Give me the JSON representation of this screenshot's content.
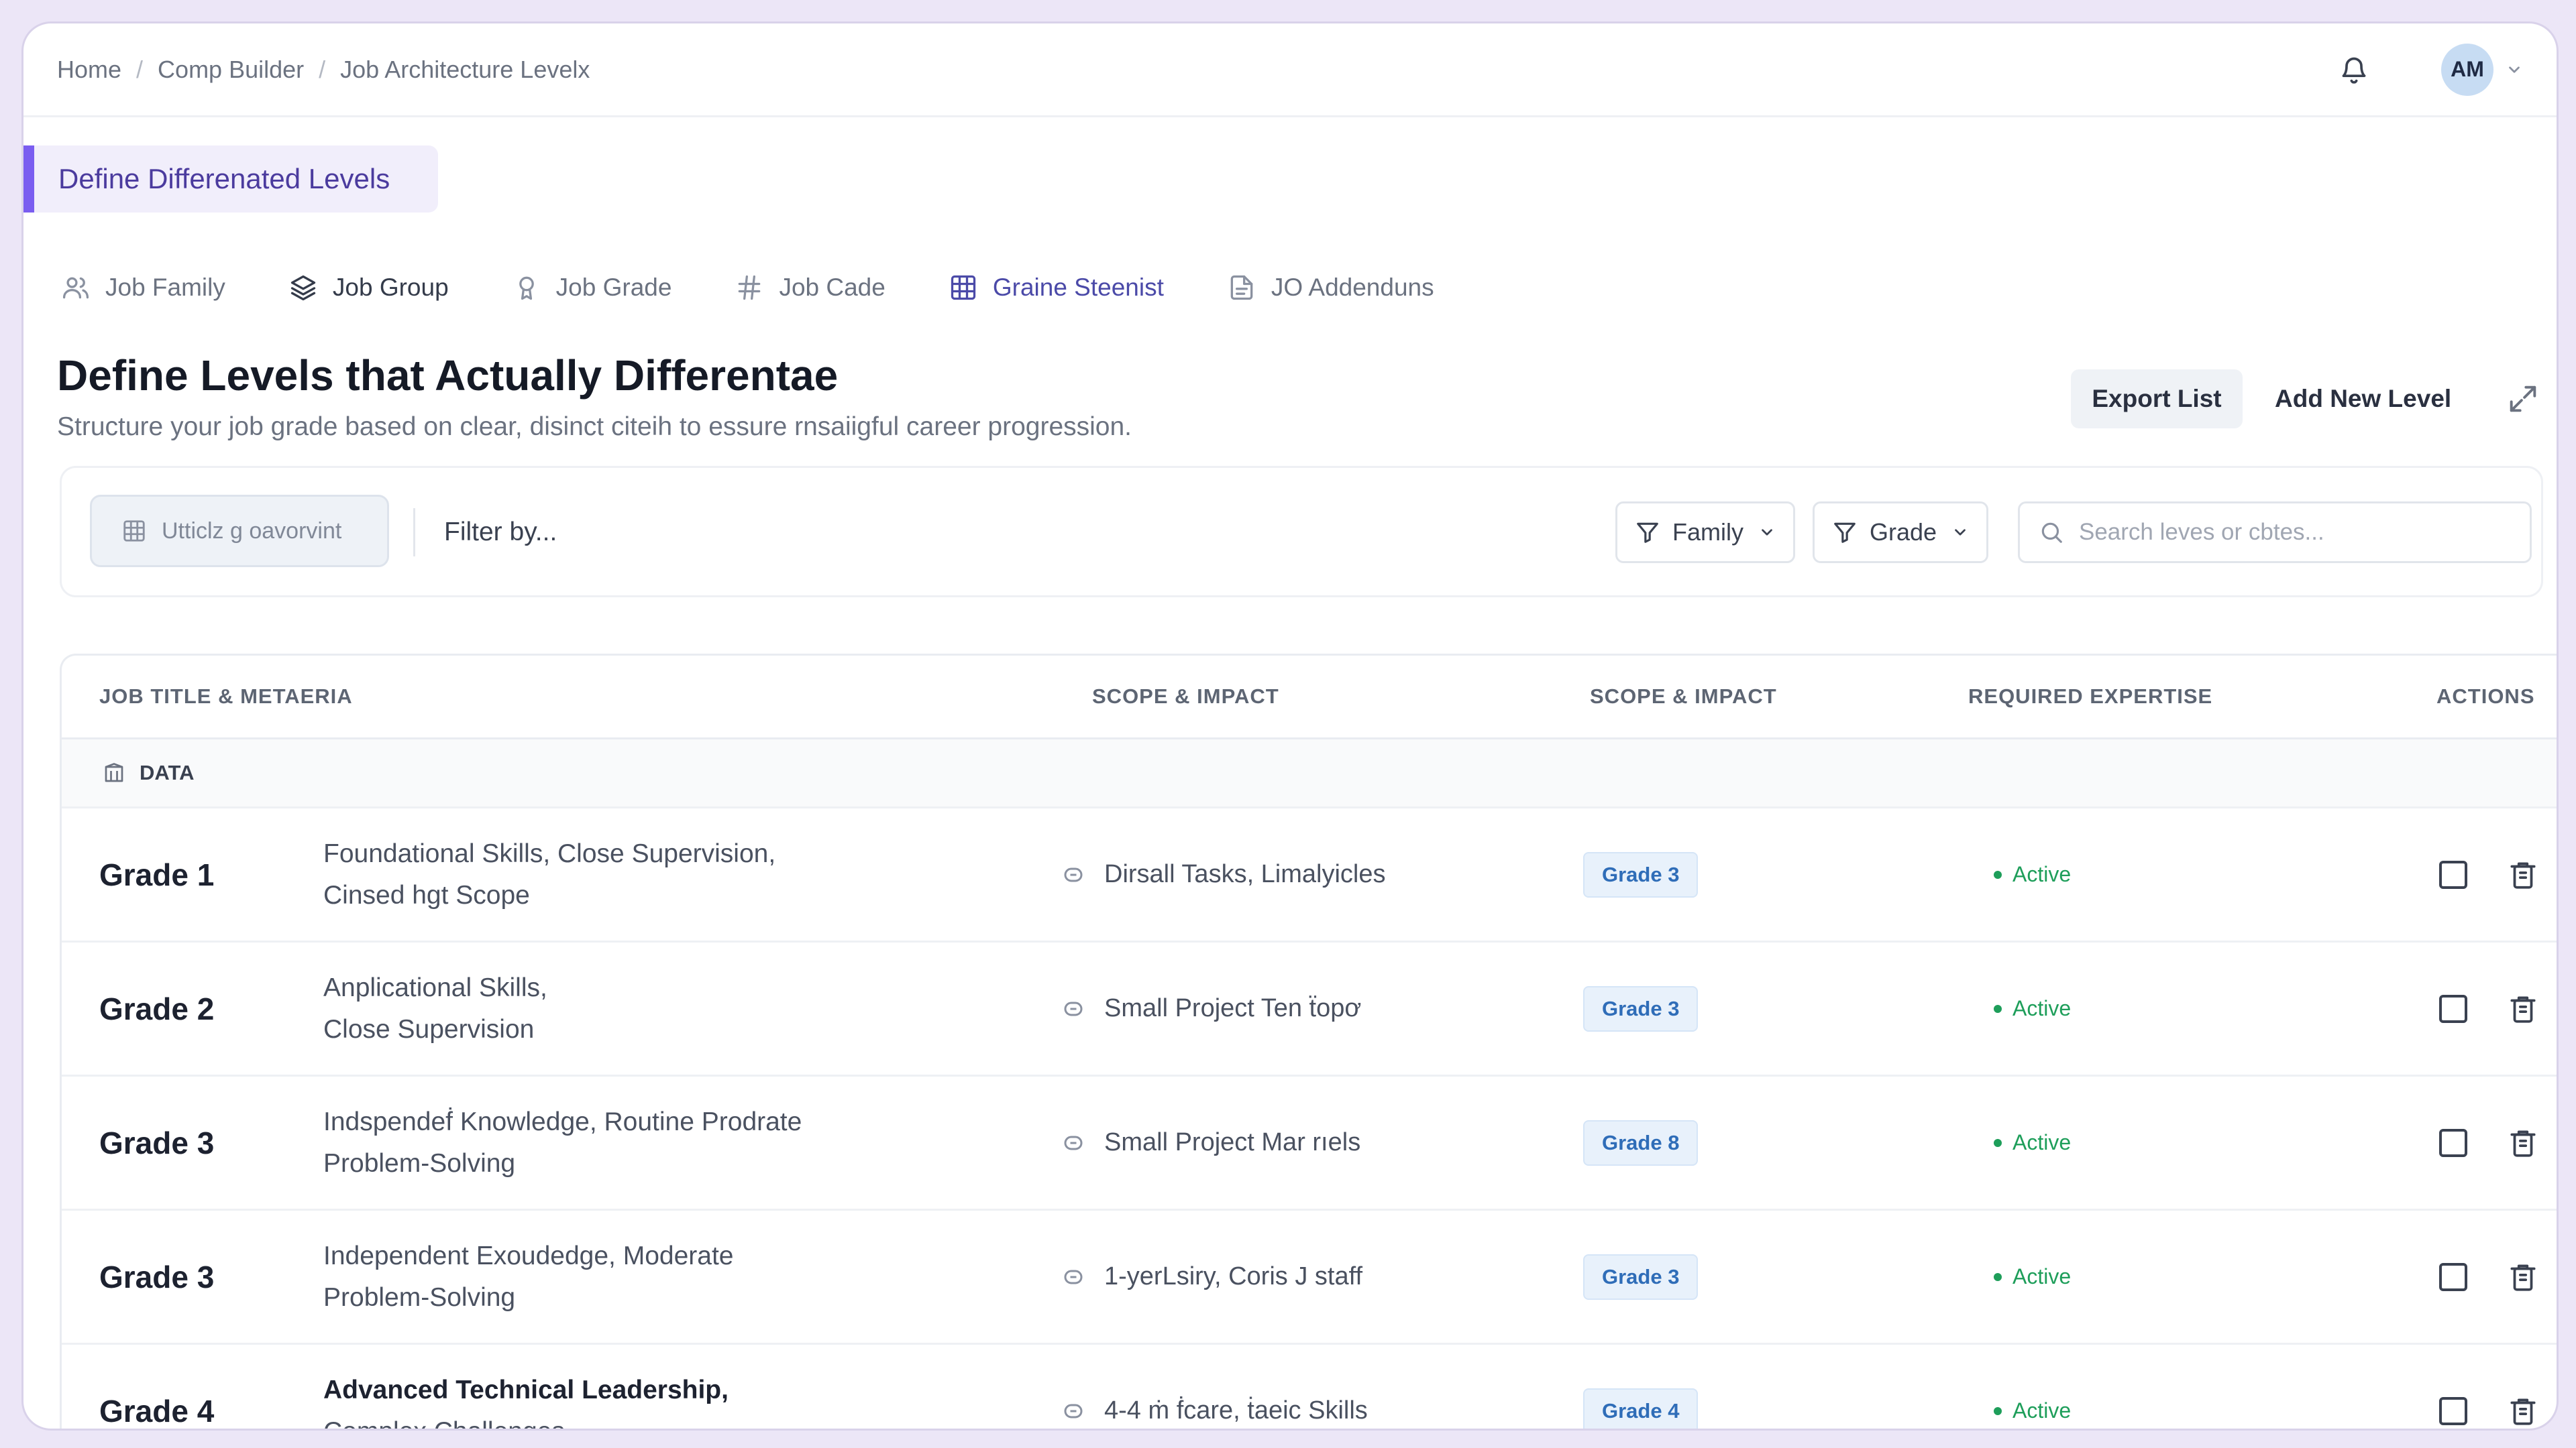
{
  "breadcrumb": [
    "Home",
    "Comp Builder",
    "Job Architecture Levelx"
  ],
  "user": {
    "initials": "AM"
  },
  "section_label": "Define Differenated Levels",
  "tabs": [
    {
      "label": "Job Family",
      "icon": "users-icon"
    },
    {
      "label": "Job Group",
      "icon": "layers-icon"
    },
    {
      "label": "Job Grade",
      "icon": "award-icon"
    },
    {
      "label": "Job Cade",
      "icon": "hash-icon"
    },
    {
      "label": "Graine Steenist",
      "icon": "grid-icon",
      "active": true
    },
    {
      "label": "JO Addenduns",
      "icon": "document-icon"
    }
  ],
  "page": {
    "title": "Define Levels that Actually Differentae",
    "subtitle": "Structure your job grade based on clear, disinct citeih to essure rnsaiigful career progression."
  },
  "actions": {
    "export": "Export List",
    "add": "Add New Level"
  },
  "filters": {
    "chip_label": "Utticlz g oavorvint",
    "filter_by": "Filter by...",
    "family": "Family",
    "grade": "Grade",
    "search_placeholder": "Search leves or cbtes..."
  },
  "table": {
    "headers": [
      "JOB TITLE & METAERIA",
      "SCOPE & IMPACT",
      "SCOPE & IMPACT",
      "REQUIRED EXPERTISE",
      "ACTIONS"
    ],
    "group_label": "DATA",
    "rows": [
      {
        "grade": "Grade 1",
        "desc1": "Foundational Skills, Close Supervision,",
        "desc2": "Cinsed hgt Scope",
        "scope": "Dirsall Tasks, Limalyicles",
        "badge": "Grade 3",
        "status": "Active"
      },
      {
        "grade": "Grade 2",
        "desc1": "Anplicational Skills,",
        "desc2": "Close Supervision",
        "scope": "Small Project Ten ẗopơ",
        "badge": "Grade 3",
        "status": "Active"
      },
      {
        "grade": "Grade 3",
        "desc1": "Indspendeḟ Knowledge, Routine Prodrate",
        "desc2": "Problem-Solving",
        "scope": "Small Project Mar rıels",
        "badge": "Grade 8",
        "status": "Active"
      },
      {
        "grade": "Grade 3",
        "desc1": "Independent Exoudedge, Moderate",
        "desc2": "Problem-Solving",
        "scope": "1-yerLsiry, Coris J staff",
        "badge": "Grade 3",
        "status": "Active"
      },
      {
        "grade": "Grade 4",
        "desc1": "Advanced Technical Leadership,",
        "desc2": "Complex Challenges",
        "scope": "4-4 ṁ ḟcare, ṫaeic Skills",
        "badge": "Grade 4",
        "status": "Active",
        "emphasis": true
      }
    ]
  }
}
